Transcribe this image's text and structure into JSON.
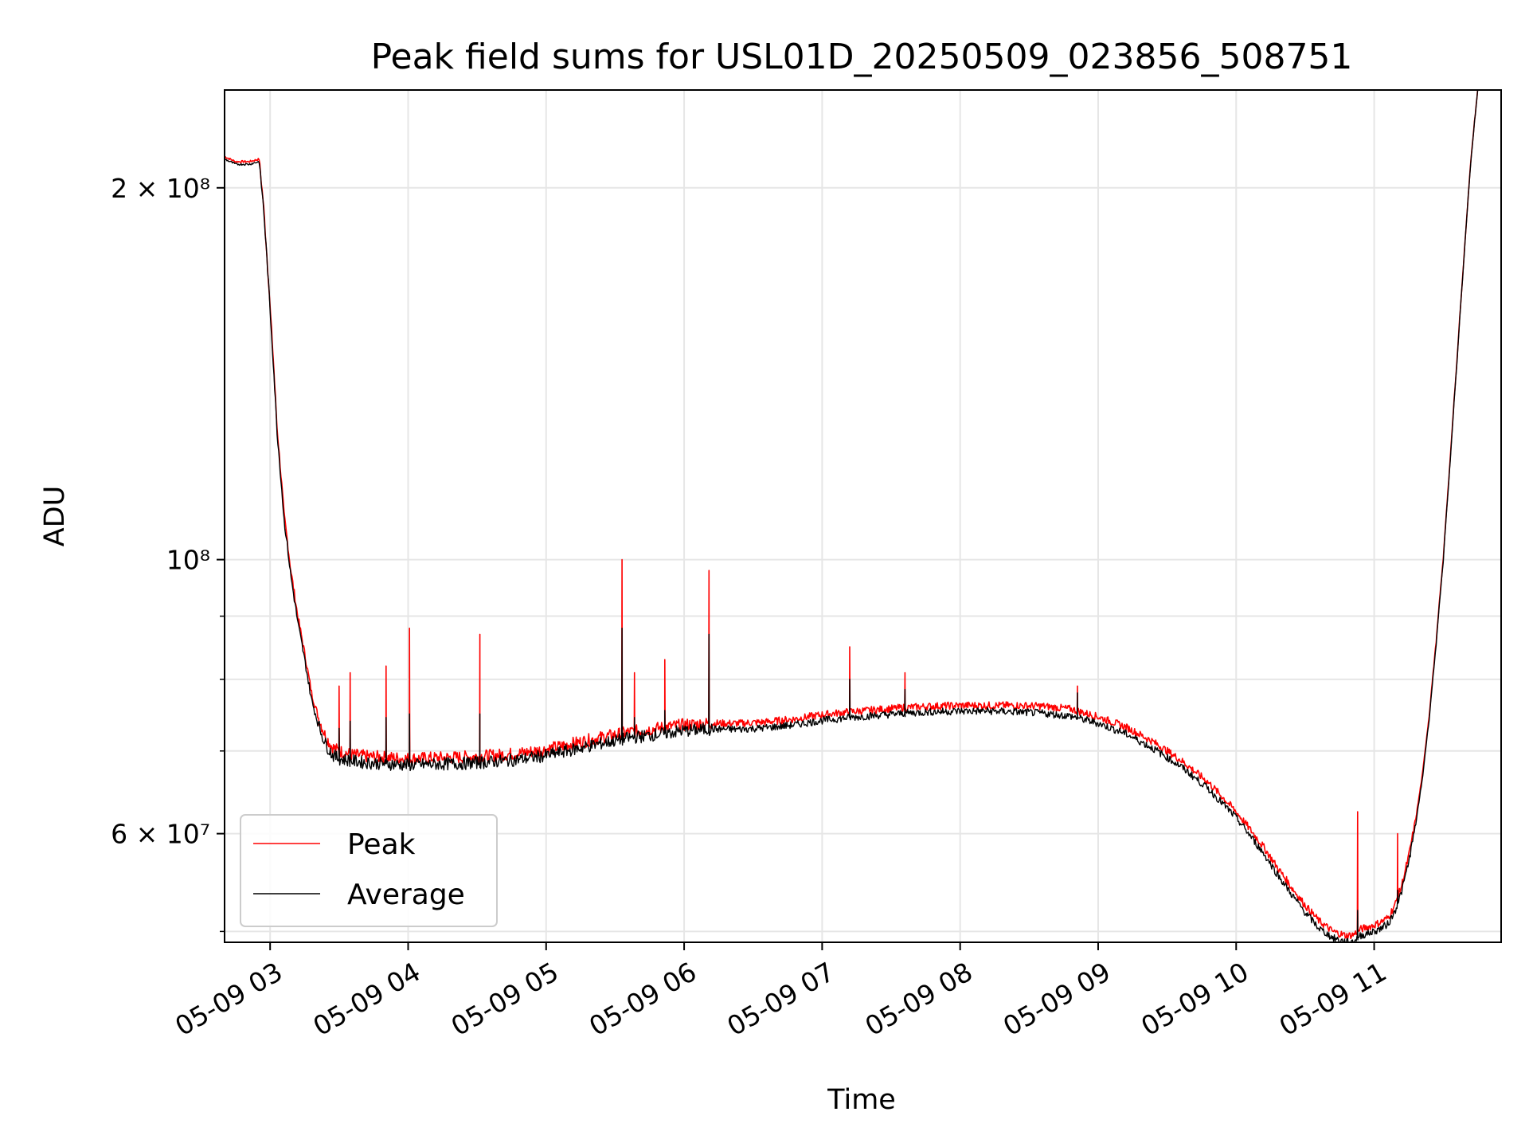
{
  "chart_data": {
    "type": "line",
    "title": "Peak field sums for USL01D_20250509_023856_508751",
    "xlabel": "Time",
    "ylabel": "ADU",
    "x_unit": "hour of 2025-05-09",
    "xlim": [
      2.67,
      11.92
    ],
    "ylim": [
      49000000,
      240000000
    ],
    "yscale": "log",
    "grid": true,
    "legend_position": "lower-left",
    "x_ticks": [
      {
        "value": 3,
        "label": "05-09 03"
      },
      {
        "value": 4,
        "label": "05-09 04"
      },
      {
        "value": 5,
        "label": "05-09 05"
      },
      {
        "value": 6,
        "label": "05-09 06"
      },
      {
        "value": 7,
        "label": "05-09 07"
      },
      {
        "value": 8,
        "label": "05-09 08"
      },
      {
        "value": 9,
        "label": "05-09 09"
      },
      {
        "value": 10,
        "label": "05-09 10"
      },
      {
        "value": 11,
        "label": "05-09 11"
      }
    ],
    "y_ticks_major": [
      {
        "value": 60000000,
        "label": "6 × 10⁷"
      },
      {
        "value": 100000000,
        "label": "10⁸"
      },
      {
        "value": 200000000,
        "label": "2 × 10⁸"
      }
    ],
    "y_ticks_minor": [
      50000000,
      70000000,
      80000000,
      90000000
    ],
    "series": [
      {
        "name": "Peak",
        "color": "#ff0000",
        "x": [
          2.67,
          2.75,
          2.85,
          2.92,
          2.95,
          3.0,
          3.05,
          3.1,
          3.15,
          3.2,
          3.25,
          3.3,
          3.35,
          3.4,
          3.45,
          3.5,
          3.6,
          3.7,
          3.8,
          3.9,
          4.0,
          4.2,
          4.4,
          4.6,
          4.8,
          5.0,
          5.2,
          5.4,
          5.6,
          5.8,
          6.0,
          6.2,
          6.4,
          6.6,
          6.8,
          7.0,
          7.2,
          7.4,
          7.6,
          7.8,
          8.0,
          8.2,
          8.4,
          8.6,
          8.8,
          9.0,
          9.2,
          9.4,
          9.6,
          9.8,
          10.0,
          10.1,
          10.2,
          10.3,
          10.4,
          10.5,
          10.6,
          10.7,
          10.8,
          10.85,
          10.9,
          10.95,
          11.0,
          11.05,
          11.1,
          11.15,
          11.2,
          11.25,
          11.3,
          11.35,
          11.4,
          11.45,
          11.5,
          11.55,
          11.6,
          11.65,
          11.7,
          11.75
        ],
        "y": [
          212000000,
          210000000,
          210000000,
          211000000,
          195000000,
          160000000,
          128000000,
          109000000,
          98000000,
          90000000,
          84000000,
          78000000,
          74500000,
          72000000,
          70500000,
          70000000,
          69500000,
          69300000,
          69200000,
          69100000,
          69000000,
          69100000,
          69200000,
          69400000,
          69700000,
          70200000,
          71000000,
          71800000,
          72500000,
          73000000,
          73500000,
          73700000,
          73700000,
          73900000,
          74300000,
          74900000,
          75300000,
          75600000,
          75900000,
          76100000,
          76200000,
          76200000,
          76200000,
          76100000,
          75700000,
          74600000,
          73200000,
          71200000,
          68800000,
          66000000,
          62500000,
          60500000,
          58500000,
          56300000,
          54300000,
          52500000,
          51000000,
          50000000,
          49600000,
          49700000,
          50200000,
          50400000,
          50600000,
          50900000,
          51300000,
          52500000,
          54500000,
          57500000,
          61500000,
          67000000,
          75000000,
          86000000,
          100000000,
          120000000,
          145000000,
          175000000,
          210000000,
          240000000
        ]
      },
      {
        "name": "Average",
        "color": "#000000",
        "x": [
          2.67,
          2.75,
          2.85,
          2.92,
          2.95,
          3.0,
          3.05,
          3.1,
          3.15,
          3.2,
          3.25,
          3.3,
          3.35,
          3.4,
          3.45,
          3.5,
          3.6,
          3.7,
          3.8,
          3.9,
          4.0,
          4.2,
          4.4,
          4.6,
          4.8,
          5.0,
          5.2,
          5.4,
          5.6,
          5.8,
          6.0,
          6.2,
          6.4,
          6.6,
          6.8,
          7.0,
          7.2,
          7.4,
          7.6,
          7.8,
          8.0,
          8.2,
          8.4,
          8.6,
          8.8,
          9.0,
          9.2,
          9.4,
          9.6,
          9.8,
          10.0,
          10.1,
          10.2,
          10.3,
          10.4,
          10.5,
          10.6,
          10.7,
          10.8,
          10.85,
          10.9,
          10.95,
          11.0,
          11.05,
          11.1,
          11.15,
          11.2,
          11.25,
          11.3,
          11.35,
          11.4,
          11.45,
          11.5,
          11.55,
          11.6,
          11.65,
          11.7,
          11.75
        ],
        "y": [
          211000000,
          209000000,
          209000000,
          210000000,
          194000000,
          159000000,
          127000000,
          108000000,
          97000000,
          89000000,
          83000000,
          77000000,
          73500000,
          71000000,
          69500000,
          69000000,
          68700000,
          68500000,
          68400000,
          68300000,
          68200000,
          68300000,
          68400000,
          68600000,
          68900000,
          69400000,
          70200000,
          71000000,
          71700000,
          72200000,
          72700000,
          72900000,
          72900000,
          73100000,
          73500000,
          74100000,
          74500000,
          74800000,
          75100000,
          75300000,
          75400000,
          75400000,
          75300000,
          75100000,
          74700000,
          73700000,
          72300000,
          70300000,
          68000000,
          65200000,
          61800000,
          59800000,
          57800000,
          55600000,
          53600000,
          51800000,
          50300000,
          49400000,
          49000000,
          49100000,
          49600000,
          49800000,
          50000000,
          50300000,
          50700000,
          51900000,
          53900000,
          56900000,
          60900000,
          66500000,
          74500000,
          85500000,
          99500000,
          119500000,
          144500000,
          174500000,
          209500000,
          240000000
        ]
      }
    ],
    "spikes": [
      {
        "x": 3.5,
        "peak": 79000000,
        "average": 73000000
      },
      {
        "x": 3.58,
        "peak": 81000000,
        "average": 74000000
      },
      {
        "x": 3.84,
        "peak": 82000000,
        "average": 74500000
      },
      {
        "x": 4.01,
        "peak": 88000000,
        "average": 75000000
      },
      {
        "x": 4.52,
        "peak": 87000000,
        "average": 75000000
      },
      {
        "x": 5.55,
        "peak": 100000000,
        "average": 88000000
      },
      {
        "x": 5.64,
        "peak": 81000000,
        "average": 74500000
      },
      {
        "x": 5.86,
        "peak": 83000000,
        "average": 75500000
      },
      {
        "x": 6.18,
        "peak": 98000000,
        "average": 87000000
      },
      {
        "x": 7.2,
        "peak": 85000000,
        "average": 80000000
      },
      {
        "x": 7.6,
        "peak": 81000000,
        "average": 78500000
      },
      {
        "x": 8.85,
        "peak": 79000000,
        "average": 78000000
      },
      {
        "x": 10.88,
        "peak": 62500000,
        "average": 52000000
      },
      {
        "x": 11.17,
        "peak": 60000000,
        "average": 54000000
      }
    ]
  }
}
